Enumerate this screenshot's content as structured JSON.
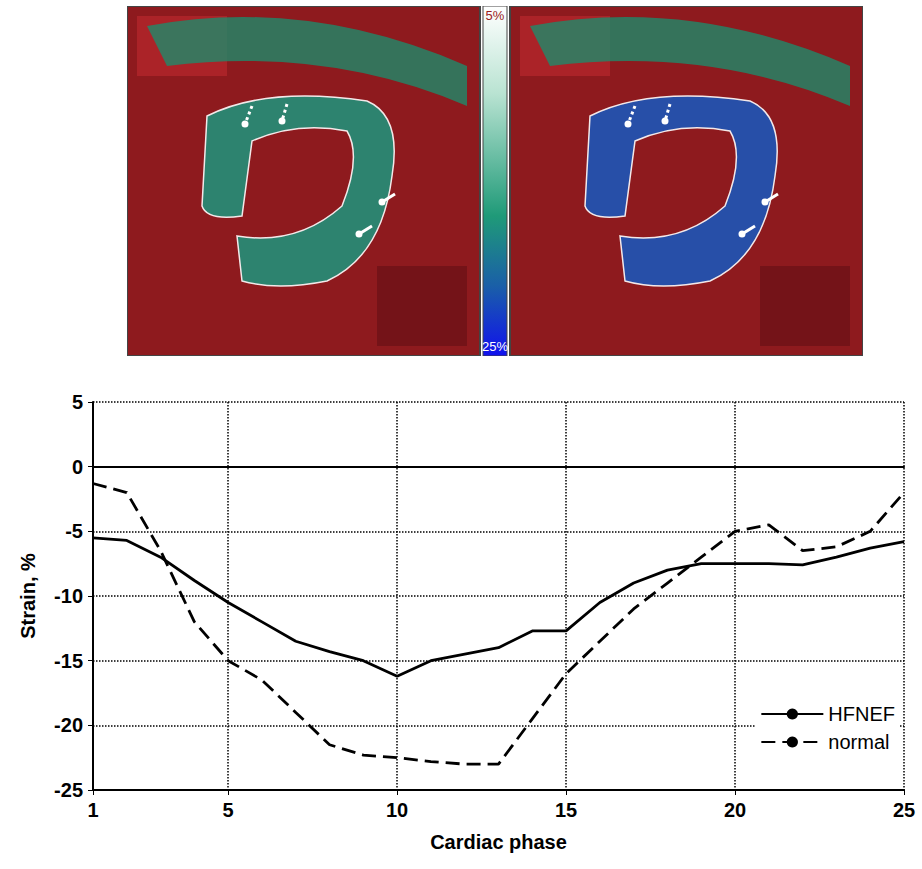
{
  "images": {
    "colorbar": {
      "top_label": "5%",
      "bottom_label": "25%"
    }
  },
  "chart_data": {
    "type": "line",
    "x": [
      1,
      2,
      3,
      4,
      5,
      6,
      7,
      8,
      9,
      10,
      11,
      12,
      13,
      14,
      15,
      16,
      17,
      18,
      19,
      20,
      21,
      22,
      23,
      24,
      25
    ],
    "series": [
      {
        "name": "HFNEF",
        "color": "#000000",
        "line_style": "solid",
        "values": [
          -5.5,
          -5.7,
          -7,
          -8.8,
          -10.5,
          -12,
          -13.5,
          -14.3,
          -15,
          -16.2,
          -15,
          -14.5,
          -14,
          -12.7,
          -12.7,
          -10.5,
          -9,
          -8,
          -7.5,
          -7.5,
          -7.5,
          -7.6,
          -7,
          -6.3,
          -5.8
        ]
      },
      {
        "name": "normal",
        "color": "#000000",
        "line_style": "dashed",
        "values": [
          -1.3,
          -2,
          -6.5,
          -12,
          -15,
          -16.5,
          -19,
          -21.5,
          -22.3,
          -22.5,
          -22.8,
          -23,
          -23,
          -19.5,
          -16,
          -13.5,
          -11,
          -9,
          -7,
          -5,
          -4.5,
          -6.5,
          -6.2,
          -5,
          -2
        ]
      }
    ],
    "x_label": "Cardiac phase",
    "y_label": "Strain, %",
    "xlim": [
      1,
      25
    ],
    "xticks": [
      1,
      5,
      10,
      15,
      20,
      25
    ],
    "ylim": [
      -25,
      5
    ],
    "yticks": [
      -25,
      -20,
      -15,
      -10,
      -5,
      0,
      5
    ],
    "grid": true,
    "legend": "bottom-right"
  }
}
